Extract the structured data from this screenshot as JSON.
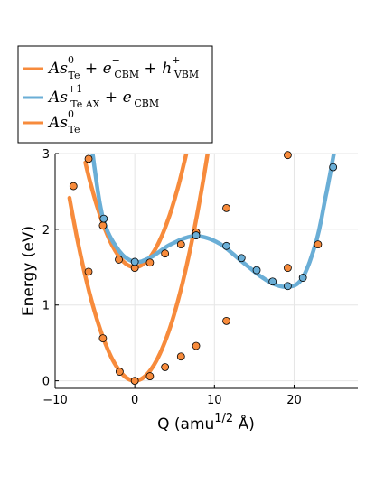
{
  "chart_data": {
    "type": "line",
    "xlabel": "Q (amu",
    "xlabel_sup": "1/2",
    "xlabel_tail": " Å)",
    "ylabel": "Energy  (eV)",
    "xlim": [
      -10,
      28
    ],
    "ylim": [
      -0.1,
      3.0
    ],
    "xticks": [
      -10,
      0,
      10,
      20
    ],
    "yticks": [
      0,
      1,
      2,
      3
    ],
    "grid": true,
    "legend_position": "top-left, above plot",
    "legend": [
      {
        "color": "#f78b3c",
        "base": "As",
        "sup": "0",
        "sub": "Te",
        "rest": [
          {
            "t": " + ",
            "style": "plain"
          },
          {
            "t": "e",
            "style": "italic"
          },
          {
            "t": "−",
            "style": "sup"
          },
          {
            "t": "CBM",
            "style": "sub"
          },
          {
            "t": " + ",
            "style": "plain"
          },
          {
            "t": "h",
            "style": "italic"
          },
          {
            "t": "+",
            "style": "sup"
          },
          {
            "t": "VBM",
            "style": "sub"
          }
        ]
      },
      {
        "color": "#6aaed6",
        "base": "As",
        "sup": "+1",
        "sub": "Te AX",
        "rest": [
          {
            "t": " + ",
            "style": "plain"
          },
          {
            "t": "e",
            "style": "italic"
          },
          {
            "t": "−",
            "style": "sup"
          },
          {
            "t": "CBM",
            "style": "sub"
          }
        ]
      },
      {
        "color": "#f78b3c",
        "base": "As",
        "sup": "0",
        "sub": "Te",
        "rest": []
      }
    ],
    "series": [
      {
        "color": "#f78b3c",
        "marker_color": "#f78b3c",
        "curve": "parabola",
        "x0": 0,
        "y0": 1.5,
        "k": 0.00835,
        "x_range": [
          -6.2,
          19.5
        ],
        "points": [
          {
            "x": -5.8,
            "y": 2.93
          },
          {
            "x": -4.0,
            "y": 2.05
          },
          {
            "x": -2.0,
            "y": 1.6
          },
          {
            "x": 0.0,
            "y": 1.49
          },
          {
            "x": 1.9,
            "y": 1.56
          },
          {
            "x": 3.8,
            "y": 1.68
          },
          {
            "x": 5.8,
            "y": 1.8
          },
          {
            "x": 7.7,
            "y": 1.96
          },
          {
            "x": 11.5,
            "y": 2.28
          },
          {
            "x": 19.2,
            "y": 2.98
          }
        ]
      },
      {
        "color": "#f78b3c",
        "marker_color": "#f78b3c",
        "curve": "parabola",
        "x0": 0,
        "y0": 0.0,
        "k": 0.00835,
        "x_range": [
          -8.2,
          28.0
        ],
        "points": [
          {
            "x": -7.7,
            "y": 2.57
          },
          {
            "x": -5.8,
            "y": 1.44
          },
          {
            "x": -4.0,
            "y": 0.56
          },
          {
            "x": -1.9,
            "y": 0.12
          },
          {
            "x": 0.0,
            "y": 0.0
          },
          {
            "x": 1.9,
            "y": 0.06
          },
          {
            "x": 3.8,
            "y": 0.18
          },
          {
            "x": 5.8,
            "y": 0.32
          },
          {
            "x": 7.7,
            "y": 0.46
          },
          {
            "x": 11.5,
            "y": 0.79
          },
          {
            "x": 19.2,
            "y": 1.49
          },
          {
            "x": 23.0,
            "y": 1.8
          }
        ]
      },
      {
        "color": "#6aaed6",
        "marker_color": "#6aaed6",
        "curve": "spline",
        "knots": [
          {
            "x": -5.3,
            "y": 3.0
          },
          {
            "x": -4.0,
            "y": 2.15
          },
          {
            "x": -2.0,
            "y": 1.72
          },
          {
            "x": 0.0,
            "y": 1.57
          },
          {
            "x": 2.0,
            "y": 1.63
          },
          {
            "x": 4.5,
            "y": 1.8
          },
          {
            "x": 7.5,
            "y": 1.91
          },
          {
            "x": 10.5,
            "y": 1.82
          },
          {
            "x": 13.5,
            "y": 1.57
          },
          {
            "x": 16.5,
            "y": 1.33
          },
          {
            "x": 19.0,
            "y": 1.24
          },
          {
            "x": 21.0,
            "y": 1.35
          },
          {
            "x": 22.8,
            "y": 1.85
          },
          {
            "x": 24.0,
            "y": 2.45
          },
          {
            "x": 25.0,
            "y": 3.0
          }
        ],
        "points": [
          {
            "x": -3.9,
            "y": 2.14
          },
          {
            "x": 0.0,
            "y": 1.57
          },
          {
            "x": 7.7,
            "y": 1.92
          },
          {
            "x": 11.5,
            "y": 1.78
          },
          {
            "x": 13.4,
            "y": 1.62
          },
          {
            "x": 15.3,
            "y": 1.46
          },
          {
            "x": 17.3,
            "y": 1.31
          },
          {
            "x": 19.2,
            "y": 1.25
          },
          {
            "x": 21.1,
            "y": 1.36
          },
          {
            "x": 24.9,
            "y": 2.82
          }
        ]
      }
    ]
  }
}
